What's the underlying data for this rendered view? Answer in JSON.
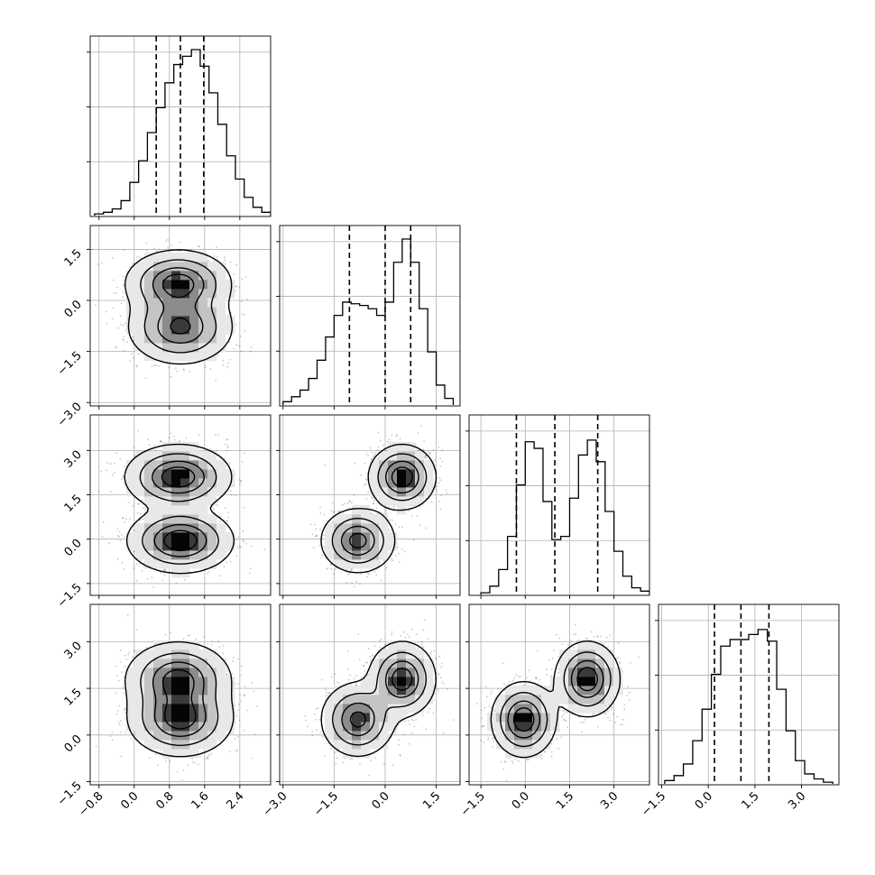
{
  "chart_data": {
    "type": "corner",
    "parameters": 4,
    "grid": true,
    "quantiles": [
      0.16,
      0.5,
      0.84
    ],
    "axis_ranges": [
      [
        -1.0,
        3.1
      ],
      [
        -3.1,
        2.2
      ],
      [
        -1.9,
        4.2
      ],
      [
        -1.6,
        4.2
      ]
    ],
    "tick_values": [
      [
        -0.8,
        0.0,
        0.8,
        1.6,
        2.4
      ],
      [
        -3.0,
        -1.5,
        0.0,
        1.5
      ],
      [
        -1.5,
        0.0,
        1.5,
        3.0
      ],
      [
        -1.5,
        0.0,
        1.5,
        3.0
      ]
    ],
    "tick_labels": [
      [
        "−0.8",
        "0.0",
        "0.8",
        "1.6",
        "2.4"
      ],
      [
        "−3.0",
        "−1.5",
        "0.0",
        "1.5"
      ],
      [
        "−1.5",
        "0.0",
        "1.5",
        "3.0"
      ],
      [
        "−1.5",
        "0.0",
        "1.5",
        "3.0"
      ]
    ],
    "histograms": [
      {
        "parameter": 0,
        "bin_edges": [
          -0.9,
          -0.7,
          -0.5,
          -0.3,
          -0.1,
          0.1,
          0.3,
          0.5,
          0.7,
          0.9,
          1.1,
          1.3,
          1.5,
          1.7,
          1.9,
          2.1,
          2.3,
          2.5,
          2.7,
          2.9,
          3.1
        ],
        "counts": [
          0.01,
          0.02,
          0.04,
          0.09,
          0.2,
          0.33,
          0.5,
          0.65,
          0.8,
          0.91,
          0.96,
          1.0,
          0.9,
          0.74,
          0.55,
          0.36,
          0.22,
          0.11,
          0.05,
          0.02
        ],
        "quantile_values": [
          0.5,
          1.05,
          1.58
        ]
      },
      {
        "parameter": 1,
        "bin_edges": [
          -3.0,
          -2.75,
          -2.5,
          -2.25,
          -2.0,
          -1.75,
          -1.5,
          -1.25,
          -1.0,
          -0.75,
          -0.5,
          -0.25,
          0.0,
          0.25,
          0.5,
          0.75,
          1.0,
          1.25,
          1.5,
          1.75,
          2.0
        ],
        "counts": [
          0.02,
          0.05,
          0.09,
          0.16,
          0.27,
          0.41,
          0.54,
          0.62,
          0.61,
          0.6,
          0.58,
          0.54,
          0.62,
          0.86,
          1.0,
          0.86,
          0.58,
          0.32,
          0.12,
          0.04
        ],
        "quantile_values": [
          -1.05,
          0.0,
          0.75
        ]
      },
      {
        "parameter": 2,
        "bin_edges": [
          -1.5,
          -1.2,
          -0.9,
          -0.6,
          -0.3,
          0.0,
          0.3,
          0.6,
          0.9,
          1.2,
          1.5,
          1.8,
          2.1,
          2.4,
          2.7,
          3.0,
          3.3,
          3.6,
          3.9,
          4.2
        ],
        "counts": [
          0.01,
          0.05,
          0.15,
          0.35,
          0.66,
          0.92,
          0.88,
          0.56,
          0.33,
          0.35,
          0.58,
          0.84,
          0.93,
          0.8,
          0.5,
          0.26,
          0.11,
          0.04,
          0.02
        ],
        "quantile_values": [
          -0.3,
          1.0,
          2.45
        ]
      },
      {
        "parameter": 3,
        "bin_edges": [
          -1.4,
          -1.1,
          -0.8,
          -0.5,
          -0.2,
          0.1,
          0.4,
          0.7,
          1.0,
          1.3,
          1.6,
          1.9,
          2.2,
          2.5,
          2.8,
          3.1,
          3.4,
          3.7,
          4.0
        ],
        "counts": [
          0.02,
          0.05,
          0.12,
          0.26,
          0.45,
          0.66,
          0.83,
          0.87,
          0.87,
          0.9,
          0.93,
          0.86,
          0.57,
          0.32,
          0.14,
          0.06,
          0.03,
          0.01
        ],
        "quantile_values": [
          0.2,
          1.05,
          1.95
        ]
      }
    ],
    "density_components": [
      {
        "weight": 0.5,
        "mean": [
          1.0,
          0.5,
          2.1,
          1.8
        ],
        "sd": [
          0.55,
          0.45,
          0.5,
          0.55
        ]
      },
      {
        "weight": 0.5,
        "mean": [
          1.05,
          -0.8,
          -0.05,
          0.5
        ],
        "sd": [
          0.55,
          0.5,
          0.5,
          0.55
        ]
      }
    ]
  }
}
